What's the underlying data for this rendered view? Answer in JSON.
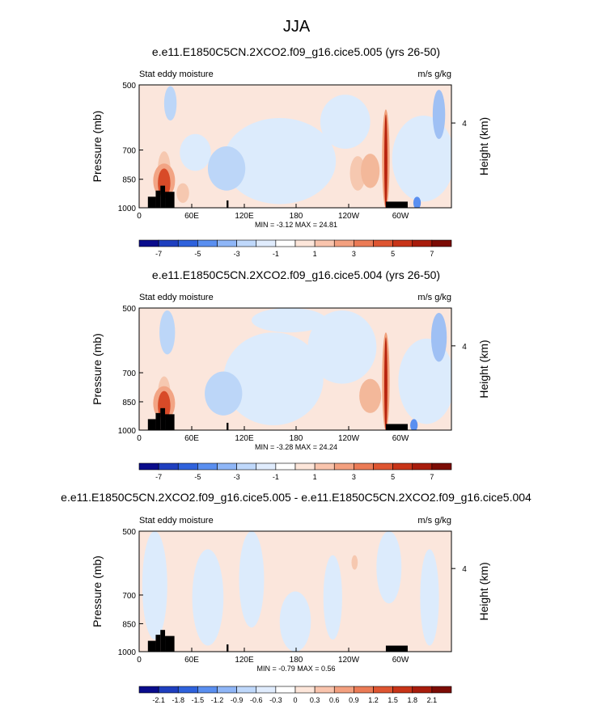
{
  "page_title": "JJA",
  "colors": {
    "land": "#000000",
    "plot_border": "#000000"
  },
  "chart_data": [
    {
      "type": "heatmap",
      "title": "e.e11.E1850C5CN.2XCO2.f09_g16.cice5.005 (yrs 26-50)",
      "left_label": "Stat eddy moisture",
      "right_label": "m/s g/kg",
      "ylabel": "Pressure (mb)",
      "ylabel_right": "Height (km)",
      "yticks": [
        "500",
        "700",
        "850",
        "1000"
      ],
      "yticks_right": [
        "4"
      ],
      "xticks": [
        "0",
        "60E",
        "120E",
        "180",
        "120W",
        "60W"
      ],
      "stats": "MIN =  -3.12  MAX =  24.81",
      "colorbar_labels": [
        "-7",
        "-5",
        "-3",
        "-1",
        "1",
        "3",
        "5",
        "7"
      ],
      "colorbar_colors": [
        "#0a0c8c",
        "#1f3fbf",
        "#2f62dc",
        "#5a8ff0",
        "#8fb6f7",
        "#bfd8fb",
        "#e0ecfd",
        "#ffffff",
        "#fde6da",
        "#f9c4ad",
        "#f3a07f",
        "#eb7b56",
        "#de5531",
        "#c83418",
        "#a81c0c",
        "#7c0c05"
      ],
      "regions": {
        "wide_negative": "blue",
        "wide_positive": "red"
      }
    },
    {
      "type": "heatmap",
      "title": "e.e11.E1850C5CN.2XCO2.f09_g16.cice5.004 (yrs 26-50)",
      "left_label": "Stat eddy moisture",
      "right_label": "m/s g/kg",
      "ylabel": "Pressure (mb)",
      "ylabel_right": "Height (km)",
      "yticks": [
        "500",
        "700",
        "850",
        "1000"
      ],
      "yticks_right": [
        "4"
      ],
      "xticks": [
        "0",
        "60E",
        "120E",
        "180",
        "120W",
        "60W"
      ],
      "stats": "MIN =  -3.28  MAX =  24.24",
      "colorbar_labels": [
        "-7",
        "-5",
        "-3",
        "-1",
        "1",
        "3",
        "5",
        "7"
      ],
      "colorbar_colors": [
        "#0a0c8c",
        "#1f3fbf",
        "#2f62dc",
        "#5a8ff0",
        "#8fb6f7",
        "#bfd8fb",
        "#e0ecfd",
        "#ffffff",
        "#fde6da",
        "#f9c4ad",
        "#f3a07f",
        "#eb7b56",
        "#de5531",
        "#c83418",
        "#a81c0c",
        "#7c0c05"
      ]
    },
    {
      "type": "heatmap",
      "title": "e.e11.E1850C5CN.2XCO2.f09_g16.cice5.005 - e.e11.E1850C5CN.2XCO2.f09_g16.cice5.004",
      "left_label": "Stat eddy moisture",
      "right_label": "m/s g/kg",
      "ylabel": "Pressure (mb)",
      "ylabel_right": "Height (km)",
      "yticks": [
        "500",
        "700",
        "850",
        "1000"
      ],
      "yticks_right": [
        "4"
      ],
      "xticks": [
        "0",
        "60E",
        "120E",
        "180",
        "120W",
        "60W"
      ],
      "stats": "MIN =  -0.79  MAX =  0.56",
      "colorbar_labels": [
        "-2.1",
        "-1.8",
        "-1.5",
        "-1.2",
        "-0.9",
        "-0.6",
        "-0.3",
        "0",
        "0.3",
        "0.6",
        "0.9",
        "1.2",
        "1.5",
        "1.8",
        "2.1"
      ],
      "colorbar_colors": [
        "#0a0c8c",
        "#1f3fbf",
        "#2f62dc",
        "#5a8ff0",
        "#8fb6f7",
        "#bfd8fb",
        "#e0ecfd",
        "#ffffff",
        "#fde6da",
        "#f9c4ad",
        "#f3a07f",
        "#eb7b56",
        "#de5531",
        "#c83418",
        "#a81c0c",
        "#7c0c05"
      ]
    }
  ]
}
